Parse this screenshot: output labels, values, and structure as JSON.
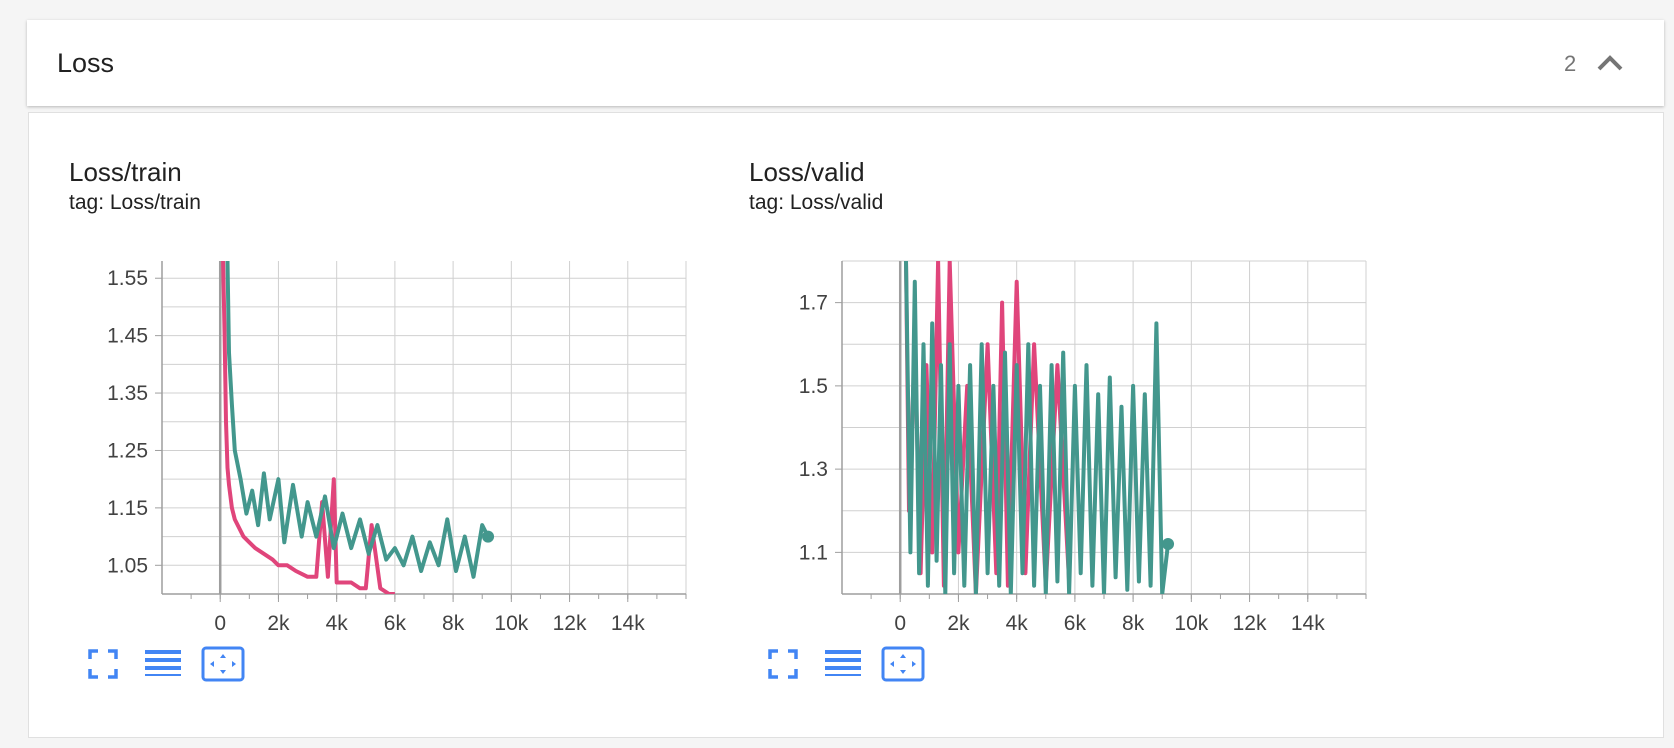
{
  "section": {
    "title": "Loss",
    "count": "2",
    "collapse_icon": "chevron-up-icon"
  },
  "colors": {
    "series_pink": "#e0457b",
    "series_teal": "#43978d",
    "tool_blue": "#4285f4"
  },
  "cards": [
    {
      "title": "Loss/train",
      "tag": "tag: Loss/train",
      "tools": [
        "fullscreen-icon",
        "log-scale-icon",
        "fit-domain-icon"
      ]
    },
    {
      "title": "Loss/valid",
      "tag": "tag: Loss/valid",
      "tools": [
        "fullscreen-icon",
        "log-scale-icon",
        "fit-domain-icon"
      ]
    }
  ],
  "chart_data": [
    {
      "type": "line",
      "title": "Loss/train",
      "xlabel": "",
      "ylabel": "",
      "xlim": [
        -2000,
        16000
      ],
      "ylim": [
        1.0,
        1.58
      ],
      "x_ticks": [
        0,
        2000,
        4000,
        6000,
        8000,
        10000,
        12000,
        14000
      ],
      "x_tick_labels": [
        "0",
        "2k",
        "4k",
        "6k",
        "8k",
        "10k",
        "12k",
        "14k"
      ],
      "y_ticks": [
        1.05,
        1.15,
        1.25,
        1.35,
        1.45,
        1.55
      ],
      "y_tick_labels": [
        "1.05",
        "1.15",
        "1.25",
        "1.35",
        "1.45",
        "1.55"
      ],
      "grid": true,
      "series": [
        {
          "color": "#e0457b",
          "x": [
            100,
            150,
            200,
            250,
            300,
            400,
            500,
            600,
            800,
            1000,
            1200,
            1500,
            1800,
            2000,
            2300,
            2600,
            3000,
            3300,
            3500,
            3700,
            3900,
            4000,
            4200,
            4500,
            4800,
            5000,
            5200,
            5500,
            5800,
            6000
          ],
          "y": [
            1.58,
            1.45,
            1.3,
            1.22,
            1.19,
            1.15,
            1.13,
            1.12,
            1.1,
            1.09,
            1.08,
            1.07,
            1.06,
            1.05,
            1.05,
            1.04,
            1.03,
            1.03,
            1.16,
            1.03,
            1.2,
            1.02,
            1.02,
            1.02,
            1.01,
            1.01,
            1.12,
            1.01,
            1.0,
            1.0
          ]
        },
        {
          "color": "#43978d",
          "x": [
            250,
            300,
            400,
            500,
            700,
            900,
            1100,
            1300,
            1500,
            1700,
            2000,
            2200,
            2500,
            2800,
            3000,
            3300,
            3600,
            3900,
            4200,
            4500,
            4800,
            5100,
            5400,
            5700,
            6000,
            6300,
            6600,
            6900,
            7200,
            7500,
            7800,
            8100,
            8400,
            8700,
            9000,
            9200
          ],
          "y": [
            1.58,
            1.42,
            1.33,
            1.25,
            1.2,
            1.14,
            1.18,
            1.12,
            1.21,
            1.13,
            1.2,
            1.09,
            1.19,
            1.1,
            1.16,
            1.1,
            1.17,
            1.08,
            1.14,
            1.08,
            1.13,
            1.07,
            1.12,
            1.06,
            1.08,
            1.05,
            1.1,
            1.04,
            1.09,
            1.05,
            1.13,
            1.04,
            1.1,
            1.03,
            1.12,
            1.1
          ]
        }
      ]
    },
    {
      "type": "line",
      "title": "Loss/valid",
      "xlabel": "",
      "ylabel": "",
      "xlim": [
        -2000,
        16000
      ],
      "ylim": [
        1.0,
        1.8
      ],
      "x_ticks": [
        0,
        2000,
        4000,
        6000,
        8000,
        10000,
        12000,
        14000
      ],
      "x_tick_labels": [
        "0",
        "2k",
        "4k",
        "6k",
        "8k",
        "10k",
        "12k",
        "14k"
      ],
      "y_ticks": [
        1.1,
        1.3,
        1.5,
        1.7
      ],
      "y_tick_labels": [
        "1.1",
        "1.3",
        "1.5",
        "1.7"
      ],
      "grid": true,
      "series": [
        {
          "color": "#e0457b",
          "x": [
            200,
            300,
            500,
            700,
            900,
            1100,
            1300,
            1500,
            1700,
            2000,
            2300,
            2600,
            3000,
            3300,
            3500,
            3700,
            4000,
            4300,
            4600,
            5000,
            5400,
            5800
          ],
          "y": [
            1.8,
            1.2,
            1.6,
            1.05,
            1.55,
            1.1,
            1.8,
            1.02,
            1.8,
            1.1,
            1.5,
            1.0,
            1.6,
            1.05,
            1.7,
            1.02,
            1.75,
            1.05,
            1.6,
            1.02,
            1.55,
            1.03
          ]
        },
        {
          "color": "#43978d",
          "x": [
            200,
            350,
            500,
            650,
            800,
            950,
            1100,
            1250,
            1400,
            1550,
            1700,
            1850,
            2000,
            2200,
            2400,
            2600,
            2800,
            3000,
            3200,
            3400,
            3600,
            3800,
            4000,
            4200,
            4400,
            4600,
            4800,
            5000,
            5200,
            5400,
            5600,
            5800,
            6000,
            6200,
            6400,
            6600,
            6800,
            7000,
            7200,
            7400,
            7600,
            7800,
            8000,
            8200,
            8400,
            8600,
            8800,
            9000,
            9200
          ],
          "y": [
            1.8,
            1.1,
            1.75,
            1.05,
            1.6,
            1.02,
            1.65,
            1.08,
            1.55,
            1.0,
            1.6,
            1.05,
            1.5,
            1.02,
            1.55,
            1.0,
            1.6,
            1.05,
            1.5,
            1.02,
            1.58,
            1.0,
            1.55,
            1.05,
            1.6,
            1.02,
            1.5,
            1.0,
            1.55,
            1.03,
            1.58,
            1.0,
            1.5,
            1.05,
            1.55,
            1.02,
            1.48,
            1.0,
            1.52,
            1.04,
            1.45,
            1.01,
            1.5,
            1.03,
            1.48,
            1.02,
            1.65,
            1.0,
            1.12
          ]
        }
      ]
    }
  ]
}
